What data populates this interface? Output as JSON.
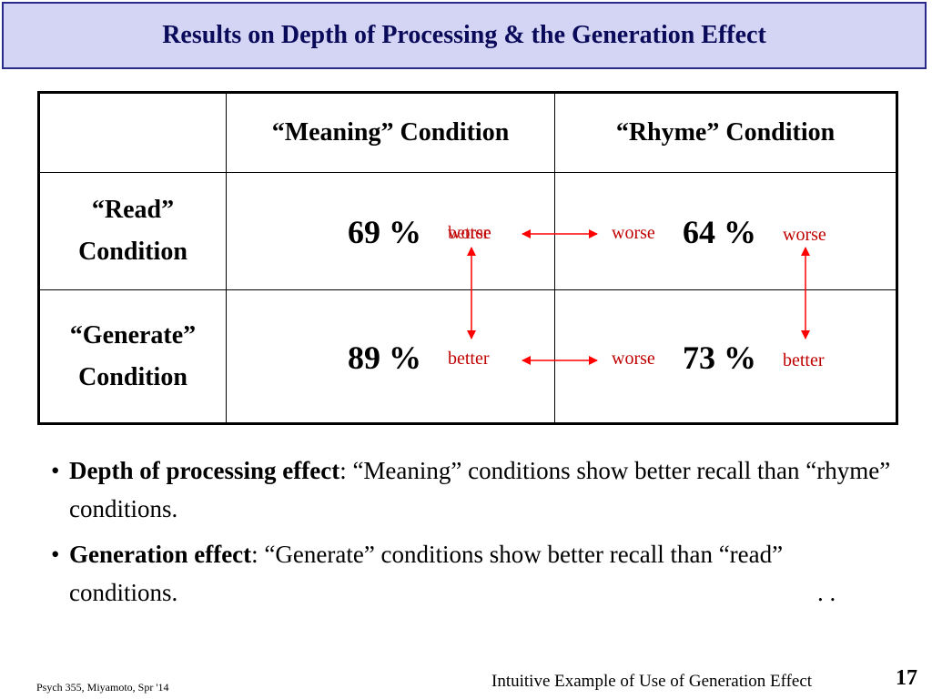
{
  "title": "Results on Depth of Processing & the Generation Effect",
  "table": {
    "headers": [
      "",
      "“Meaning” Condition",
      "“Rhyme” Condition"
    ],
    "rows": [
      {
        "label_line1": "“Read”",
        "label_line2": "Condition",
        "meaning": "69 %",
        "rhyme": "64 %",
        "meaning_ann": "worse",
        "meaning_ann_overlap": "better",
        "rhyme_left_ann": "worse",
        "rhyme_ann": "worse"
      },
      {
        "label_line1": "“Generate”",
        "label_line2": "Condition",
        "meaning": "89 %",
        "rhyme": "73 %",
        "meaning_ann": "better",
        "rhyme_left_ann": "worse",
        "rhyme_ann": "better"
      }
    ]
  },
  "colors": {
    "annotation": "#c00000",
    "title_bg": "#d4d4f4",
    "title_text": "#0a0a5a"
  },
  "bullets": [
    {
      "term": "Depth of processing effect",
      "text": ":  “Meaning” conditions show better recall than “rhyme” conditions."
    },
    {
      "term": "Generation effect",
      "text": ":  “Generate” conditions show better recall than “read” conditions."
    }
  ],
  "trailing_dots": ". .",
  "footer": {
    "left": "Psych 355, Miyamoto, Spr '14",
    "right": "Intuitive Example of Use of Generation Effect",
    "page": "17"
  }
}
